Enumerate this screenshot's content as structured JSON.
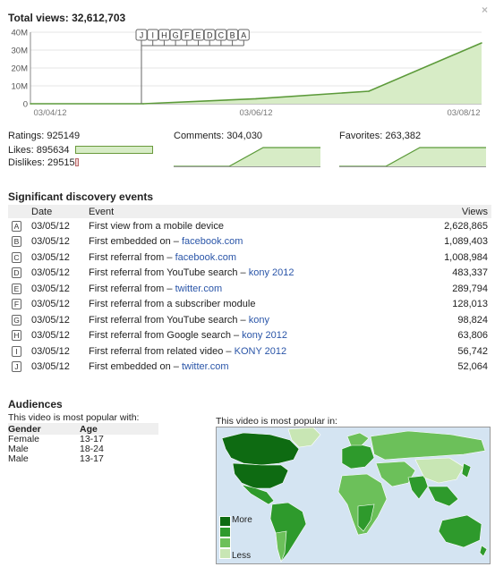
{
  "total_views_label": "Total views: 32,612,703",
  "close_glyph": "×",
  "chart_data": {
    "type": "area",
    "title": "",
    "x": [
      "03/04/12",
      "03/05/12",
      "03/06/12",
      "03/07/12",
      "03/08/12"
    ],
    "values": [
      0,
      0,
      2.8,
      7.0,
      34.0
    ],
    "yunit": "M",
    "ylim": [
      0,
      40
    ],
    "y_ticks": [
      "0",
      "10M",
      "20M",
      "30M",
      "40M"
    ],
    "x_tick_labels": [
      "03/04/12",
      "03/06/12",
      "03/08/12"
    ],
    "markers": [
      "J",
      "I",
      "H",
      "G",
      "F",
      "E",
      "D",
      "C",
      "B",
      "A"
    ],
    "grid": true,
    "fill_color": "#d7ecc6",
    "line_color": "#5c9a3a"
  },
  "stats": {
    "ratings": "Ratings: 925149",
    "likes": "Likes: 895634",
    "dislikes": "Dislikes: 29515",
    "likes_fraction": 0.968,
    "comments": "Comments: 304,030",
    "favorites": "Favorites: 263,382"
  },
  "discovery": {
    "title": "Significant discovery events",
    "columns": {
      "date": "Date",
      "event": "Event",
      "views": "Views"
    },
    "rows": [
      {
        "marker": "A",
        "date": "03/05/12",
        "event": "First view from a mobile device",
        "link": "",
        "views": "2,628,865"
      },
      {
        "marker": "B",
        "date": "03/05/12",
        "event": "First embedded on – ",
        "link": "facebook.com",
        "views": "1,089,403"
      },
      {
        "marker": "C",
        "date": "03/05/12",
        "event": "First referral from – ",
        "link": "facebook.com",
        "views": "1,008,984"
      },
      {
        "marker": "D",
        "date": "03/05/12",
        "event": "First referral from YouTube search – ",
        "link": "kony 2012",
        "views": "483,337"
      },
      {
        "marker": "E",
        "date": "03/05/12",
        "event": "First referral from – ",
        "link": "twitter.com",
        "views": "289,794"
      },
      {
        "marker": "F",
        "date": "03/05/12",
        "event": "First referral from a subscriber module",
        "link": "",
        "views": "128,013"
      },
      {
        "marker": "G",
        "date": "03/05/12",
        "event": "First referral from YouTube search – ",
        "link": "kony",
        "views": "98,824"
      },
      {
        "marker": "H",
        "date": "03/05/12",
        "event": "First referral from Google search – ",
        "link": "kony 2012",
        "views": "63,806"
      },
      {
        "marker": "I",
        "date": "03/05/12",
        "event": "First referral from related video – ",
        "link": "KONY 2012",
        "views": "56,742"
      },
      {
        "marker": "J",
        "date": "03/05/12",
        "event": "First embedded on – ",
        "link": "twitter.com",
        "views": "52,064"
      }
    ]
  },
  "audiences": {
    "title": "Audiences",
    "subtitle": "This video is most popular with:",
    "columns": {
      "gender": "Gender",
      "age": "Age"
    },
    "rows": [
      {
        "gender": "Female",
        "age": "13-17"
      },
      {
        "gender": "Male",
        "age": "18-24"
      },
      {
        "gender": "Male",
        "age": "13-17"
      }
    ]
  },
  "map": {
    "title": "This video is most popular in:",
    "legend_more": "More",
    "legend_less": "Less",
    "scale_colors": [
      "#0e6b12",
      "#2e9a2c",
      "#6cc05a",
      "#c8e6b4"
    ]
  }
}
